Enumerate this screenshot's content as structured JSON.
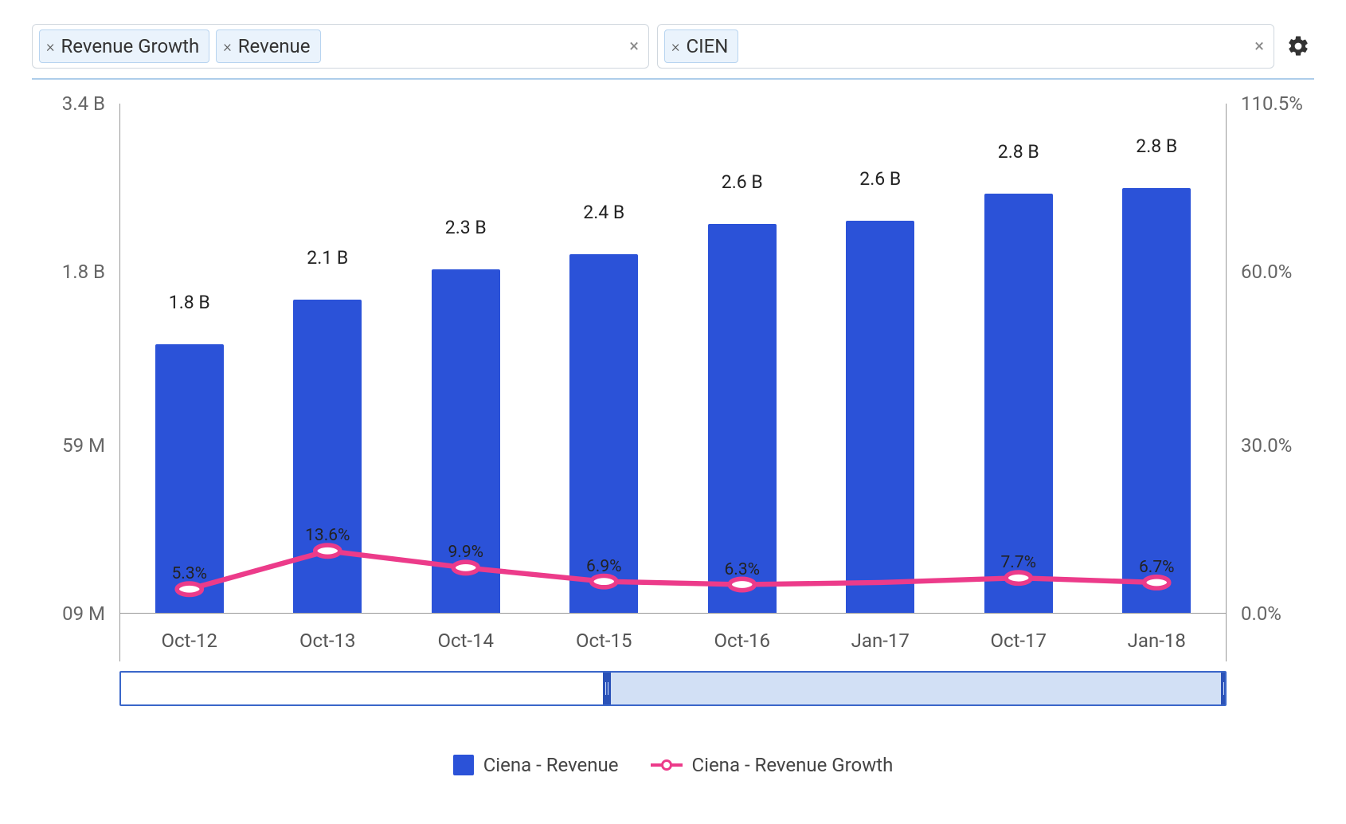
{
  "filters": {
    "metrics": [
      {
        "label": "Revenue Growth"
      },
      {
        "label": "Revenue"
      }
    ],
    "tickers": [
      {
        "label": "CIEN"
      }
    ]
  },
  "chart": {
    "type": "bar+line",
    "background_color": "#ffffff",
    "axis_color": "#999999",
    "label_color": "#555555",
    "font_size_axis": 24,
    "font_size_value": 23,
    "left_axis": {
      "ticks": [
        "3.4 B",
        "1.8 B",
        "59 M",
        "09 M"
      ],
      "tick_positions_pct": [
        0,
        33,
        67,
        100
      ],
      "min_value_b": 0.009,
      "max_value_b": 3.4
    },
    "right_axis": {
      "ticks": [
        "110.5%",
        "60.0%",
        "30.0%",
        "0.0%"
      ],
      "tick_positions_pct": [
        0,
        33,
        67,
        100
      ],
      "min_value": 0.0,
      "max_value": 110.5
    },
    "categories": [
      "Oct-12",
      "Oct-13",
      "Oct-14",
      "Oct-15",
      "Oct-16",
      "Jan-17",
      "Oct-17",
      "Jan-18"
    ],
    "bars": {
      "name": "Ciena - Revenue",
      "color": "#2b52d8",
      "values_b": [
        1.8,
        2.1,
        2.3,
        2.4,
        2.6,
        2.6,
        2.8,
        2.8
      ],
      "labels": [
        "1.8 B",
        "2.1 B",
        "2.3 B",
        "2.4 B",
        "2.6 B",
        "2.6 B",
        "2.8 B",
        "2.8 B"
      ],
      "height_pct": [
        52.8,
        61.6,
        67.5,
        70.5,
        76.4,
        77.0,
        82.3,
        83.4
      ],
      "bar_width_pct": 56
    },
    "line": {
      "name": "Ciena - Revenue Growth",
      "color": "#ec3b8a",
      "stroke_width": 4,
      "marker_radius": 7,
      "marker_fill": "#ffffff",
      "values_pct": [
        5.3,
        13.6,
        9.9,
        6.9,
        6.3,
        null,
        7.7,
        6.7
      ],
      "labels": [
        "5.3%",
        "13.6%",
        "9.9%",
        "6.9%",
        "6.3%",
        "",
        "7.7%",
        "6.7%"
      ],
      "y_pos_pct": [
        95.2,
        87.7,
        91.0,
        93.7,
        94.3,
        93.9,
        93.0,
        93.9
      ]
    },
    "range_slider": {
      "start_pct": 44,
      "end_pct": 100,
      "track_border_color": "#3a66c9",
      "fill_color": "#d2e0f5",
      "handle_color": "#2b52b8"
    }
  },
  "legend": {
    "items": [
      {
        "kind": "bar",
        "label": "Ciena - Revenue",
        "color": "#2b52d8"
      },
      {
        "kind": "line",
        "label": "Ciena - Revenue Growth",
        "color": "#ec3b8a"
      }
    ]
  }
}
